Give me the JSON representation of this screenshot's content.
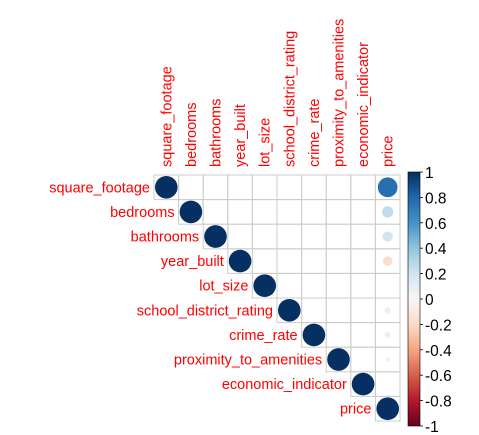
{
  "chart_data": {
    "type": "heatmap",
    "title": "",
    "variables": [
      "square_footage",
      "bedrooms",
      "bathrooms",
      "year_built",
      "lot_size",
      "school_district_rating",
      "crime_rate",
      "proximity_to_amenities",
      "economic_indicator",
      "price"
    ],
    "column_labels": [
      "square_footage",
      "bedrooms",
      "bathrooms",
      "year_built",
      "lot_size",
      "school_district_rating",
      "crime_rate",
      "proximity_to_amenities",
      "economic_indicator",
      "price"
    ],
    "layout": "upper-triangle",
    "matrix": [
      [
        1,
        0,
        0,
        0,
        0,
        0,
        0,
        0,
        0,
        0.76
      ],
      [
        0,
        1,
        0,
        0,
        0,
        0,
        0,
        0,
        0,
        0.25
      ],
      [
        0,
        0,
        1,
        0,
        0,
        0,
        0,
        0,
        0,
        0.2
      ],
      [
        0,
        0,
        0,
        1,
        0,
        0,
        0,
        0,
        0,
        -0.18
      ],
      [
        0,
        0,
        0,
        0,
        1,
        0,
        0,
        0,
        0,
        0
      ],
      [
        0,
        0,
        0,
        0,
        0,
        1,
        0,
        0,
        0,
        0.08
      ],
      [
        0,
        0,
        0,
        0,
        0,
        0,
        1,
        0,
        0,
        -0.07
      ],
      [
        0,
        0,
        0,
        0,
        0,
        0,
        0,
        1,
        0,
        0.04
      ],
      [
        0,
        0,
        0,
        0,
        0,
        0,
        0,
        0,
        1,
        0
      ],
      [
        0,
        0,
        0,
        0,
        0,
        0,
        0,
        0,
        0,
        1
      ]
    ],
    "colorbar": {
      "range": [
        -1,
        1
      ],
      "ticks": [
        "1",
        "0.8",
        "0.6",
        "0.4",
        "0.2",
        "0",
        "-0.2",
        "-0.4",
        "-0.6",
        "-0.8",
        "-1"
      ],
      "tick_values": [
        1,
        0.8,
        0.6,
        0.4,
        0.2,
        0,
        -0.2,
        -0.4,
        -0.6,
        -0.8,
        -1
      ]
    },
    "label_color": "#ff0000",
    "grid": true
  }
}
